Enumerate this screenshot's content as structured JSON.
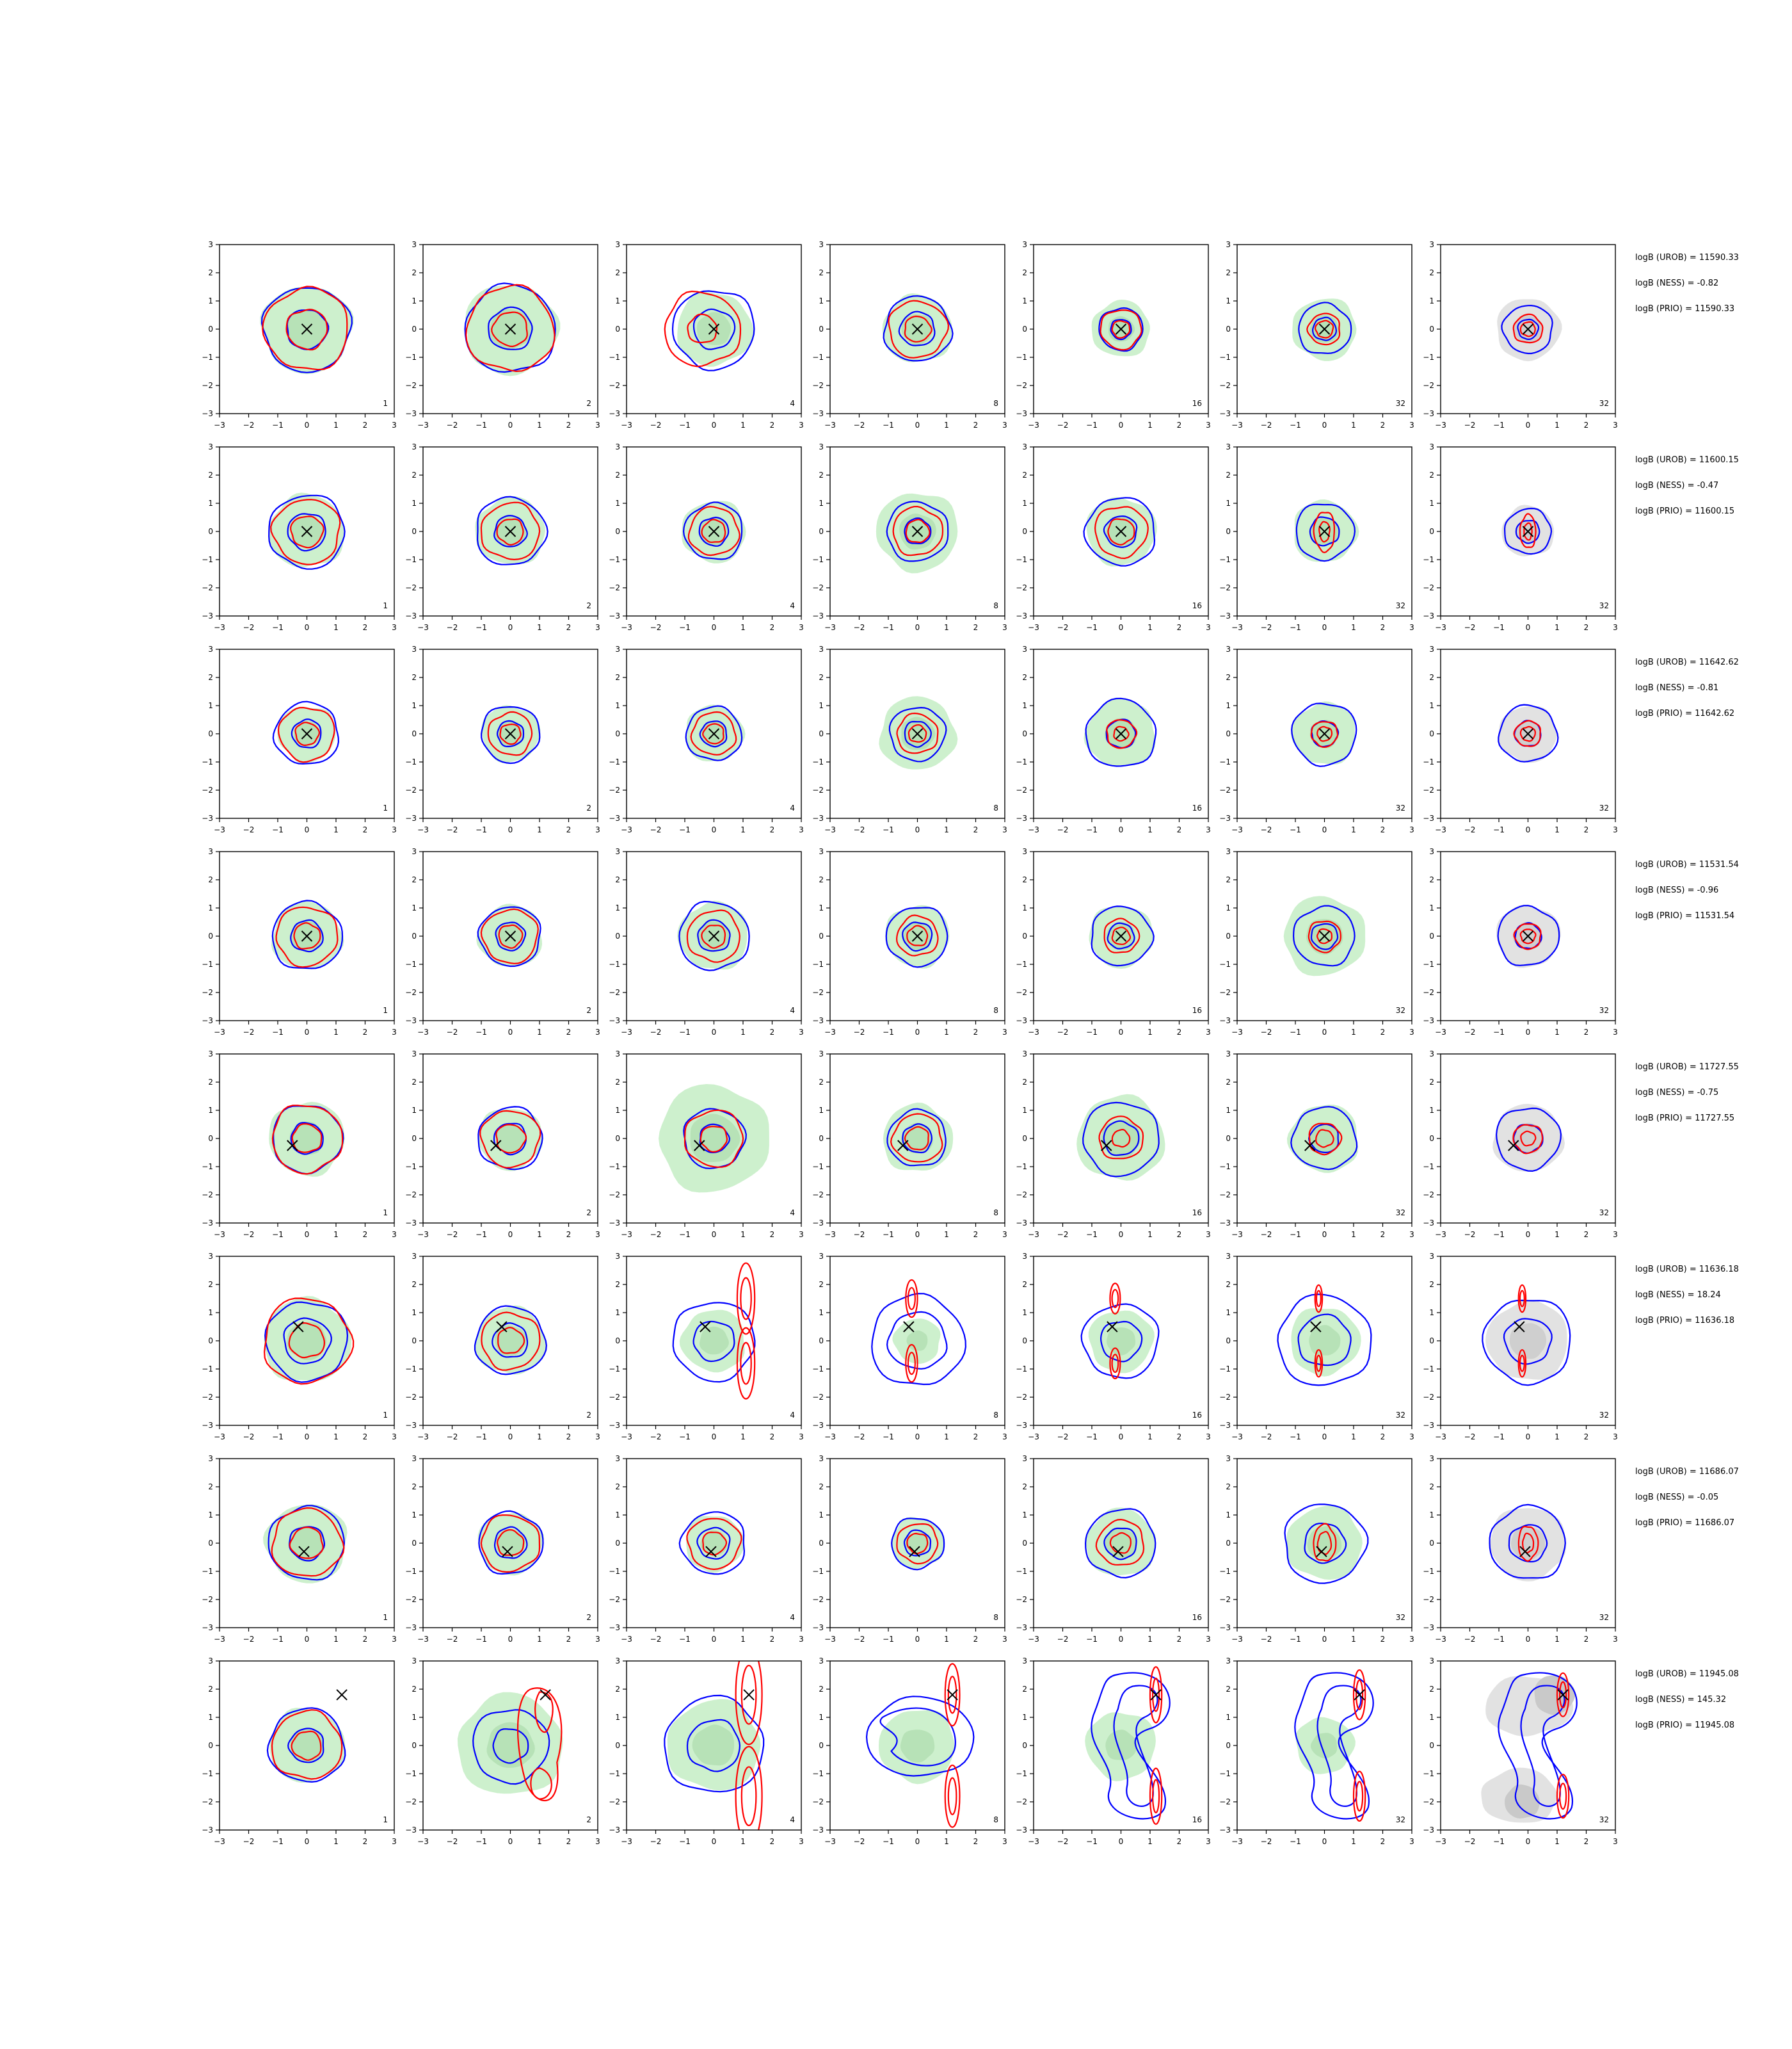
{
  "chart_data": {
    "type": "contour-grid",
    "xlim": [
      -3,
      3
    ],
    "ylim": [
      -3,
      3
    ],
    "ticks": [
      "−3",
      "−2",
      "−1",
      "0",
      "1",
      "2",
      "3"
    ],
    "tick_values": [
      -3,
      -2,
      -1,
      0,
      1,
      2,
      3
    ],
    "grid": false,
    "column_labels": [
      "1",
      "2",
      "4",
      "8",
      "16",
      "32",
      "32"
    ],
    "colors": {
      "blue_contour": "#0000ff",
      "red_contour": "#ff0000",
      "green_fill": "#cdf0cd",
      "gray_fill": "#e2e2e2",
      "marker": "#000000"
    },
    "rows": [
      {
        "annotations": [
          "logB (UROB) = 11590.33",
          "logB (NESS) = -0.82",
          "logB (PRIO) = 11590.33"
        ],
        "marker": [
          0,
          0
        ],
        "panels": [
          {
            "green": 1.55,
            "blue": [
              1.5,
              0.7
            ],
            "red": [
              1.45,
              0.7
            ]
          },
          {
            "green": 1.6,
            "blue": [
              1.55,
              0.75
            ],
            "red": [
              1.5,
              0.6
            ]
          },
          {
            "green": 1.3,
            "blue": [
              1.4,
              0.7
            ],
            "red": [
              1.3,
              0.5
            ],
            "red_shift": [
              -0.4,
              0
            ]
          },
          {
            "green": 1.2,
            "blue": [
              1.15,
              0.6
            ],
            "red": [
              1.0,
              0.45
            ]
          },
          {
            "green": 1.0,
            "blue": [
              0.75,
              0.35
            ],
            "red": [
              0.7,
              0.3
            ]
          },
          {
            "green": 1.1,
            "blue": [
              0.9,
              0.4
            ],
            "red": [
              0.55,
              0.3
            ]
          },
          {
            "gray": 1.1,
            "blue": [
              0.85,
              0.35
            ],
            "red": [
              0.5,
              0.25
            ]
          }
        ]
      },
      {
        "annotations": [
          "logB (UROB) = 11600.15",
          "logB (NESS) = -0.47",
          "logB (PRIO) = 11600.15"
        ],
        "marker": [
          0,
          0
        ],
        "panels": [
          {
            "green": 1.3,
            "blue": [
              1.3,
              0.65
            ],
            "red": [
              1.15,
              0.55
            ]
          },
          {
            "green": 1.2,
            "blue": [
              1.2,
              0.55
            ],
            "red": [
              1.0,
              0.45
            ]
          },
          {
            "green": 1.1,
            "blue": [
              1.0,
              0.5
            ],
            "red": [
              0.85,
              0.4
            ]
          },
          {
            "green": 1.4,
            "blue": [
              1.05,
              0.45
            ],
            "red": [
              0.85,
              0.4
            ]
          },
          {
            "green": 1.2,
            "blue": [
              1.2,
              0.55
            ],
            "red": [
              0.9,
              0.45
            ]
          },
          {
            "green": 1.1,
            "blue": [
              1.0,
              0.5
            ],
            "red": [
              0.5,
              0.25
            ],
            "red_stretch": 2.0
          },
          {
            "gray": 0.9,
            "blue": [
              0.8,
              0.4
            ],
            "red": [
              0.4,
              0.2
            ],
            "red_stretch": 2.2
          }
        ]
      },
      {
        "annotations": [
          "logB (UROB) = 11642.62",
          "logB (NESS) = -0.81",
          "logB (PRIO) = 11642.62"
        ],
        "marker": [
          0,
          0
        ],
        "panels": [
          {
            "green": 1.0,
            "blue": [
              1.1,
              0.5
            ],
            "red": [
              0.95,
              0.4
            ]
          },
          {
            "green": 1.0,
            "blue": [
              1.0,
              0.45
            ],
            "red": [
              0.75,
              0.35
            ]
          },
          {
            "green": 1.0,
            "blue": [
              0.95,
              0.45
            ],
            "red": [
              0.75,
              0.35
            ]
          },
          {
            "green": 1.3,
            "blue": [
              0.95,
              0.45
            ],
            "red": [
              0.7,
              0.3
            ]
          },
          {
            "green": 1.2,
            "blue": [
              1.2,
              0.5
            ],
            "red": [
              0.5,
              0.25
            ]
          },
          {
            "green": 1.1,
            "blue": [
              1.1,
              0.45
            ],
            "red": [
              0.45,
              0.25
            ]
          },
          {
            "gray": 1.0,
            "blue": [
              1.0,
              0.45
            ],
            "red": [
              0.45,
              0.25
            ]
          }
        ]
      },
      {
        "annotations": [
          "logB (UROB) = 11531.54",
          "logB (NESS) = -0.96",
          "logB (PRIO) = 11531.54"
        ],
        "marker": [
          0,
          0
        ],
        "panels": [
          {
            "green": 1.2,
            "blue": [
              1.2,
              0.55
            ],
            "red": [
              1.05,
              0.45
            ]
          },
          {
            "green": 1.1,
            "blue": [
              1.05,
              0.5
            ],
            "red": [
              0.95,
              0.4
            ]
          },
          {
            "green": 1.2,
            "blue": [
              1.2,
              0.55
            ],
            "red": [
              0.9,
              0.4
            ]
          },
          {
            "green": 1.1,
            "blue": [
              1.05,
              0.5
            ],
            "red": [
              0.7,
              0.35
            ]
          },
          {
            "green": 1.1,
            "blue": [
              1.05,
              0.45
            ],
            "red": [
              0.6,
              0.3
            ]
          },
          {
            "green": 1.4,
            "blue": [
              1.05,
              0.45
            ],
            "red": [
              0.55,
              0.25
            ]
          },
          {
            "gray": 1.1,
            "blue": [
              1.05,
              0.45
            ],
            "red": [
              0.45,
              0.25
            ]
          }
        ]
      },
      {
        "annotations": [
          "logB (UROB) = 11727.55",
          "logB (NESS) = -0.75",
          "logB (PRIO) = 11727.55"
        ],
        "marker": [
          -0.5,
          -0.25
        ],
        "panels": [
          {
            "green": 1.3,
            "blue": [
              1.2,
              0.55
            ],
            "red": [
              1.2,
              0.5
            ]
          },
          {
            "green": 1.1,
            "blue": [
              1.1,
              0.55
            ],
            "red": [
              1.0,
              0.5
            ]
          },
          {
            "green": 1.9,
            "blue": [
              1.05,
              0.5
            ],
            "red": [
              1.0,
              0.45
            ]
          },
          {
            "green": 1.2,
            "blue": [
              1.0,
              0.5
            ],
            "red": [
              0.85,
              0.4
            ]
          },
          {
            "green": 1.5,
            "blue": [
              1.3,
              0.6
            ],
            "red": [
              0.75,
              0.3
            ]
          },
          {
            "green": 1.2,
            "blue": [
              1.1,
              0.5
            ],
            "red": [
              0.55,
              0.3
            ]
          },
          {
            "gray": 1.2,
            "blue": [
              1.1,
              0.5
            ],
            "red": [
              0.5,
              0.25
            ]
          }
        ]
      },
      {
        "annotations": [
          "logB (UROB) = 11636.18",
          "logB (NESS) = 18.24",
          "logB (PRIO) = 11636.18"
        ],
        "marker": [
          -0.3,
          0.5
        ],
        "panels": [
          {
            "green": 1.5,
            "blue": [
              1.4,
              0.8
            ],
            "red": [
              1.5,
              0.6
            ]
          },
          {
            "green": 1.2,
            "blue": [
              1.2,
              0.6
            ],
            "red": [
              1.0,
              0.45
            ]
          },
          {
            "green": 1.1,
            "blue": [
              1.4,
              0.7
            ],
            "red_pair": [
              0.6,
              1.05
            ]
          },
          {
            "green": 0.8,
            "blue": [
              1.6,
              1.0
            ],
            "red_pair": [
              0.4,
              0.55
            ]
          },
          {
            "green": 1.1,
            "blue": [
              1.3,
              0.7
            ],
            "red_pair": [
              0.35,
              0.45
            ]
          },
          {
            "green": 1.2,
            "blue": [
              1.6,
              0.9
            ],
            "red_pair": [
              0.25,
              0.4
            ]
          },
          {
            "gray": 1.4,
            "blue": [
              1.5,
              0.8
            ],
            "red_pair": [
              0.25,
              0.4
            ]
          }
        ]
      },
      {
        "annotations": [
          "logB (UROB) = 11686.07",
          "logB (NESS) = -0.05",
          "logB (PRIO) = 11686.07"
        ],
        "marker": [
          -0.1,
          -0.3
        ],
        "panels": [
          {
            "green": 1.4,
            "blue": [
              1.3,
              0.6
            ],
            "red": [
              1.2,
              0.55
            ]
          },
          {
            "green": 1.1,
            "blue": [
              1.1,
              0.55
            ],
            "red": [
              1.0,
              0.45
            ]
          },
          {
            "green": 1.0,
            "blue": [
              1.1,
              0.55
            ],
            "red": [
              0.9,
              0.4
            ]
          },
          {
            "green": 0.9,
            "blue": [
              0.9,
              0.45
            ],
            "red": [
              0.7,
              0.35
            ]
          },
          {
            "green": 1.2,
            "blue": [
              1.2,
              0.55
            ],
            "red": [
              0.8,
              0.35
            ]
          },
          {
            "green": 1.3,
            "blue": [
              1.4,
              0.7
            ],
            "red": [
              0.5,
              0.3
            ],
            "red_stretch": 1.7
          },
          {
            "gray": 1.3,
            "blue": [
              1.3,
              0.65
            ],
            "red": [
              0.45,
              0.25
            ],
            "red_stretch": 1.8
          }
        ]
      },
      {
        "annotations": [
          "logB (UROB) = 11945.08",
          "logB (NESS) = 145.32",
          "logB (PRIO) = 11945.08"
        ],
        "marker": [
          1.2,
          1.8
        ],
        "panels": [
          {
            "green": 1.3,
            "blue": [
              1.3,
              0.6
            ],
            "red": [
              1.2,
              0.5
            ],
            "no_marker_line": true
          },
          {
            "green": 1.8,
            "blue": [
              1.3,
              0.6
            ],
            "red_band": true
          },
          {
            "green": 1.6,
            "blue": [
              1.7,
              0.9
            ],
            "red_pair_far": [
              0.45,
              0.8
            ]
          },
          {
            "green": 1.3,
            "blue_ring": [
              1.75,
              1.2
            ],
            "red_pair_far": [
              0.25,
              0.5
            ]
          },
          {
            "green": 1.2,
            "blue_s": true,
            "red_pair_far": [
              0.2,
              0.45
            ]
          },
          {
            "green": 1.0,
            "blue_s": true,
            "red_pair_far": [
              0.2,
              0.4
            ]
          },
          {
            "gray": 1.9,
            "blue_s": true,
            "red_pair_far": [
              0.2,
              0.35
            ]
          }
        ]
      }
    ]
  }
}
